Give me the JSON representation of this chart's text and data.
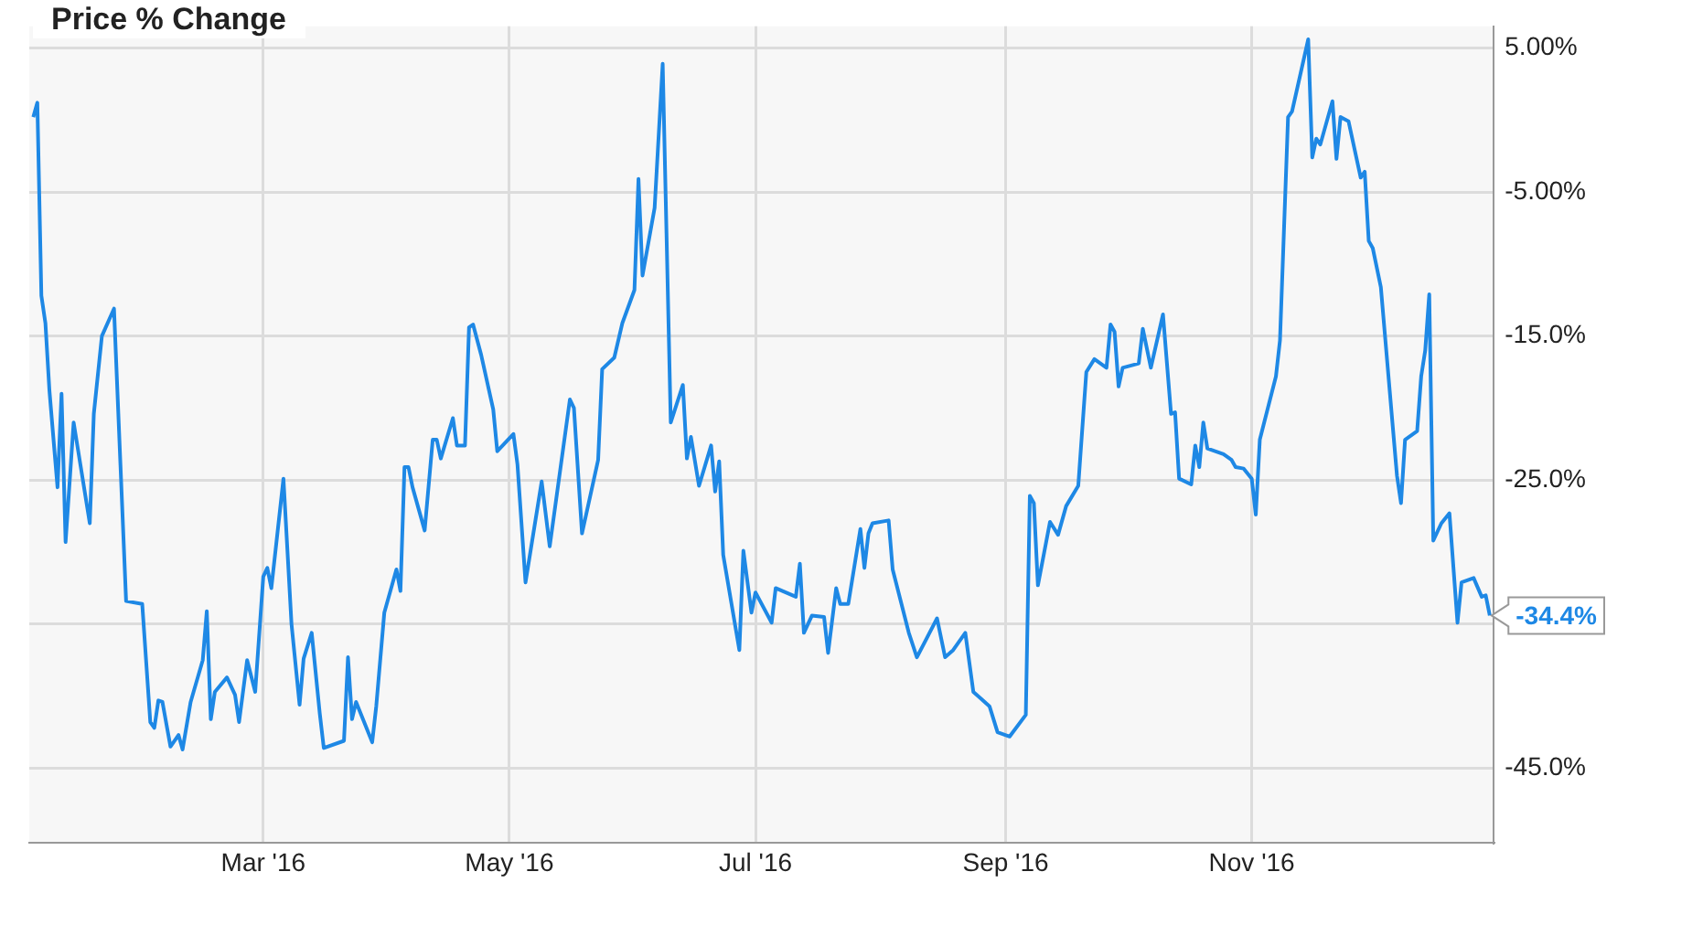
{
  "chart_data": {
    "type": "line",
    "title": "Price % Change",
    "x": [
      "2016-01-04",
      "2016-01-05",
      "2016-01-06",
      "2016-01-07",
      "2016-01-08",
      "2016-01-10",
      "2016-01-11",
      "2016-01-12",
      "2016-01-14",
      "2016-01-18",
      "2016-01-19",
      "2016-01-21",
      "2016-01-24",
      "2016-01-27",
      "2016-01-31",
      "2016-02-02",
      "2016-02-03",
      "2016-02-04",
      "2016-02-05",
      "2016-02-07",
      "2016-02-09",
      "2016-02-10",
      "2016-02-12",
      "2016-02-15",
      "2016-02-16",
      "2016-02-17",
      "2016-02-18",
      "2016-02-21",
      "2016-02-23",
      "2016-02-24",
      "2016-02-26",
      "2016-02-28",
      "2016-03-01",
      "2016-03-02",
      "2016-03-03",
      "2016-03-06",
      "2016-03-08",
      "2016-03-10",
      "2016-03-11",
      "2016-03-13",
      "2016-03-15",
      "2016-03-16",
      "2016-03-21",
      "2016-03-22",
      "2016-03-23",
      "2016-03-24",
      "2016-03-28",
      "2016-03-29",
      "2016-03-31",
      "2016-04-03",
      "2016-04-04",
      "2016-04-05",
      "2016-04-06",
      "2016-04-07",
      "2016-04-10",
      "2016-04-12",
      "2016-04-13",
      "2016-04-14",
      "2016-04-17",
      "2016-04-18",
      "2016-04-20",
      "2016-04-21",
      "2016-04-22",
      "2016-04-24",
      "2016-04-27",
      "2016-04-28",
      "2016-05-02",
      "2016-05-03",
      "2016-05-05",
      "2016-05-09",
      "2016-05-11",
      "2016-05-16",
      "2016-05-17",
      "2016-05-19",
      "2016-05-23",
      "2016-05-24",
      "2016-05-27",
      "2016-05-29",
      "2016-06-01",
      "2016-06-02",
      "2016-06-03",
      "2016-06-06",
      "2016-06-08",
      "2016-06-10",
      "2016-06-13",
      "2016-06-14",
      "2016-06-15",
      "2016-06-17",
      "2016-06-20",
      "2016-06-21",
      "2016-06-22",
      "2016-06-23",
      "2016-06-27",
      "2016-06-28",
      "2016-06-30",
      "2016-07-01",
      "2016-07-05",
      "2016-07-06",
      "2016-07-11",
      "2016-07-12",
      "2016-07-13",
      "2016-07-15",
      "2016-07-18",
      "2016-07-19",
      "2016-07-21",
      "2016-07-22",
      "2016-07-24",
      "2016-07-27",
      "2016-07-28",
      "2016-07-29",
      "2016-07-30",
      "2016-08-03",
      "2016-08-04",
      "2016-08-08",
      "2016-08-10",
      "2016-08-15",
      "2016-08-17",
      "2016-08-19",
      "2016-08-22",
      "2016-08-24",
      "2016-08-28",
      "2016-08-30",
      "2016-09-02",
      "2016-09-06",
      "2016-09-07",
      "2016-09-08",
      "2016-09-09",
      "2016-09-12",
      "2016-09-14",
      "2016-09-16",
      "2016-09-19",
      "2016-09-21",
      "2016-09-23",
      "2016-09-26",
      "2016-09-27",
      "2016-09-28",
      "2016-09-29",
      "2016-09-30",
      "2016-10-04",
      "2016-10-05",
      "2016-10-07",
      "2016-10-10",
      "2016-10-12",
      "2016-10-13",
      "2016-10-14",
      "2016-10-17",
      "2016-10-18",
      "2016-10-19",
      "2016-10-20",
      "2016-10-21",
      "2016-10-25",
      "2016-10-27",
      "2016-10-28",
      "2016-10-30",
      "2016-11-01",
      "2016-11-02",
      "2016-11-03",
      "2016-11-07",
      "2016-11-08",
      "2016-11-10",
      "2016-11-11",
      "2016-11-15",
      "2016-11-16",
      "2016-11-17",
      "2016-11-18",
      "2016-11-21",
      "2016-11-22",
      "2016-11-23",
      "2016-11-25",
      "2016-11-28",
      "2016-11-29",
      "2016-11-30",
      "2016-12-01",
      "2016-12-03",
      "2016-12-07",
      "2016-12-08",
      "2016-12-09",
      "2016-12-12",
      "2016-12-13",
      "2016-12-14",
      "2016-12-15",
      "2016-12-16",
      "2016-12-18",
      "2016-12-20",
      "2016-12-22",
      "2016-12-23",
      "2016-12-26",
      "2016-12-28",
      "2016-12-29",
      "2016-12-30"
    ],
    "series": [
      {
        "color": "#1e88e5",
        "values": [
          0.2,
          1.2,
          -12.2,
          -14.1,
          -18.8,
          -25.5,
          -19,
          -29.3,
          -21,
          -28,
          -20.4,
          -15,
          -13.1,
          -33.4,
          -33.6,
          -41.8,
          -42.2,
          -40.3,
          -40.4,
          -43.5,
          -42.7,
          -43.7,
          -40.4,
          -37.5,
          -34.1,
          -41.6,
          -39.7,
          -38.7,
          -39.9,
          -41.8,
          -37.5,
          -39.7,
          -31.7,
          -31.1,
          -32.5,
          -24.9,
          -35,
          -40.6,
          -37.4,
          -35.6,
          -41.2,
          -43.6,
          -43.1,
          -37.3,
          -41.6,
          -40.4,
          -43.2,
          -40.7,
          -34.2,
          -31.2,
          -32.7,
          -24.1,
          -24.1,
          -25.5,
          -28.5,
          -22.2,
          -22.2,
          -23.5,
          -20.7,
          -22.6,
          -22.6,
          -14.4,
          -14.2,
          -16.3,
          -20.1,
          -23,
          -21.8,
          -23.9,
          -32.1,
          -25.1,
          -29.6,
          -19.4,
          -20,
          -28.7,
          -23.6,
          -17.3,
          -16.5,
          -14.1,
          -11.8,
          -4.1,
          -10.8,
          -6.1,
          3.9,
          -21,
          -18.4,
          -23.5,
          -22,
          -25.4,
          -22.6,
          -25.8,
          -23.7,
          -30.2,
          -36.8,
          -29.9,
          -34.2,
          -32.8,
          -34.9,
          -32.5,
          -33.1,
          -30.8,
          -35.6,
          -34.4,
          -34.5,
          -37,
          -32.5,
          -33.6,
          -33.6,
          -28.4,
          -31.1,
          -28.7,
          -28,
          -27.8,
          -31.2,
          -35.6,
          -37.3,
          -34.6,
          -37.3,
          -36.8,
          -35.6,
          -39.7,
          -40.7,
          -42.5,
          -42.8,
          -41.3,
          -26.1,
          -26.6,
          -32.3,
          -27.9,
          -28.8,
          -26.8,
          -25.4,
          -17.5,
          -16.6,
          -17.2,
          -14.2,
          -14.7,
          -18.5,
          -17.2,
          -16.9,
          -14.5,
          -17.2,
          -13.5,
          -20.4,
          -20.3,
          -24.9,
          -25.3,
          -22.6,
          -24.1,
          -21,
          -22.8,
          -23.2,
          -23.6,
          -24.1,
          -24.2,
          -24.9,
          -27.4,
          -22.2,
          -17.8,
          -15.3,
          0.2,
          0.6,
          5.6,
          -2.6,
          -1.3,
          -1.7,
          1.3,
          -2.7,
          0.2,
          -0.1,
          -4,
          -3.6,
          -8.4,
          -8.9,
          -11.6,
          -24.7,
          -26.6,
          -22.2,
          -21.6,
          -17.8,
          -16,
          -12.1,
          -29.2,
          -28,
          -27.3,
          -34.9,
          -32.1,
          -31.8,
          -33.1,
          -33,
          -34.4
        ]
      }
    ],
    "xlim": [
      "2016-01-03",
      "2016-12-31"
    ],
    "xticks": [
      {
        "value": "2016-03-01",
        "label": "Mar '16"
      },
      {
        "value": "2016-05-01",
        "label": "May '16"
      },
      {
        "value": "2016-07-01",
        "label": "Jul '16"
      },
      {
        "value": "2016-09-01",
        "label": "Sep '16"
      },
      {
        "value": "2016-11-01",
        "label": "Nov '16"
      }
    ],
    "ylim": [
      -50.2,
      6.5
    ],
    "yticks": [
      {
        "value": -45,
        "label": "-45.0%"
      },
      {
        "value": -35,
        "label": null
      },
      {
        "value": -25,
        "label": "-25.0%"
      },
      {
        "value": -15,
        "label": "-15.0%"
      },
      {
        "value": -5,
        "label": "-5.00%"
      },
      {
        "value": 5,
        "label": "5.00%"
      }
    ],
    "annotations": [
      {
        "text": "-34.4%",
        "x": "2016-12-30",
        "y": -34.4
      }
    ],
    "grid": true,
    "legend": false,
    "marker": "none",
    "line_style": "solid"
  }
}
